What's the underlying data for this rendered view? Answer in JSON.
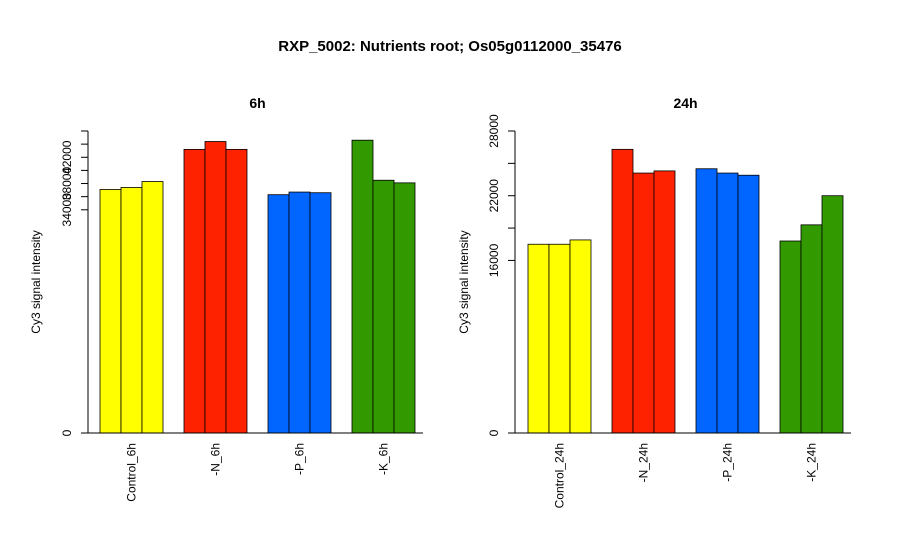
{
  "title": "RXP_5002: Nutrients root; Os05g0112000_35476",
  "colors": {
    "control": "#ffff00",
    "N": "#ff2200",
    "P": "#0066ff",
    "K": "#339900"
  },
  "chart_data": [
    {
      "type": "bar",
      "title": "6h",
      "ylabel": "Cy3 signal intensity",
      "ylim": [
        0,
        46000
      ],
      "yticks": [
        0,
        34000,
        38000,
        42000
      ],
      "ytick_labels": [
        "0",
        "34000",
        "",
        "42000"
      ],
      "ytick_labels_secondary": [
        "",
        "",
        "38000",
        ""
      ],
      "categories": [
        "Control_6h",
        "-N_6h",
        "-P_6h",
        "-K_6h"
      ],
      "groups": [
        {
          "category": "Control_6h",
          "color": "control",
          "values": [
            37100,
            37400,
            38300
          ]
        },
        {
          "category": "-N_6h",
          "color": "N",
          "values": [
            43200,
            44400,
            43200
          ]
        },
        {
          "category": "-P_6h",
          "color": "P",
          "values": [
            36300,
            36700,
            36600
          ]
        },
        {
          "category": "-K_6h",
          "color": "K",
          "values": [
            44600,
            38500,
            38100
          ]
        }
      ]
    },
    {
      "type": "bar",
      "title": "24h",
      "ylabel": "Cy3 signal intensity",
      "ylim": [
        0,
        28000
      ],
      "yticks": [
        0,
        16000,
        22000,
        28000
      ],
      "ytick_labels": [
        "0",
        "16000",
        "22000",
        "28000"
      ],
      "categories": [
        "Control_24h",
        "-N_24h",
        "-P_24h",
        "-K_24h"
      ],
      "groups": [
        {
          "category": "Control_24h",
          "color": "control",
          "values": [
            17500,
            17500,
            17900
          ]
        },
        {
          "category": "-N_24h",
          "color": "N",
          "values": [
            26300,
            24100,
            24300
          ]
        },
        {
          "category": "-P_24h",
          "color": "P",
          "values": [
            24500,
            24100,
            23900
          ]
        },
        {
          "category": "-K_24h",
          "color": "K",
          "values": [
            17800,
            19300,
            22000
          ]
        }
      ]
    }
  ]
}
